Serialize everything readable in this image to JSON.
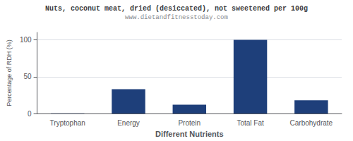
{
  "chart_data": {
    "type": "bar",
    "title": "Nuts, coconut meat, dried (desiccated), not sweetened per 100g",
    "subtitle": "www.dietandfitnesstoday.com",
    "xlabel": "Different Nutrients",
    "ylabel": "Percentage of RDH (%)",
    "categories": [
      "Tryptophan",
      "Energy",
      "Protein",
      "Total Fat",
      "Carbohydrate"
    ],
    "values": [
      0.39,
      33,
      12,
      100,
      18
    ],
    "color": "#1e3f7a",
    "ylim": [
      0,
      110
    ],
    "yticks": [
      0,
      50,
      100
    ],
    "grid": true
  }
}
